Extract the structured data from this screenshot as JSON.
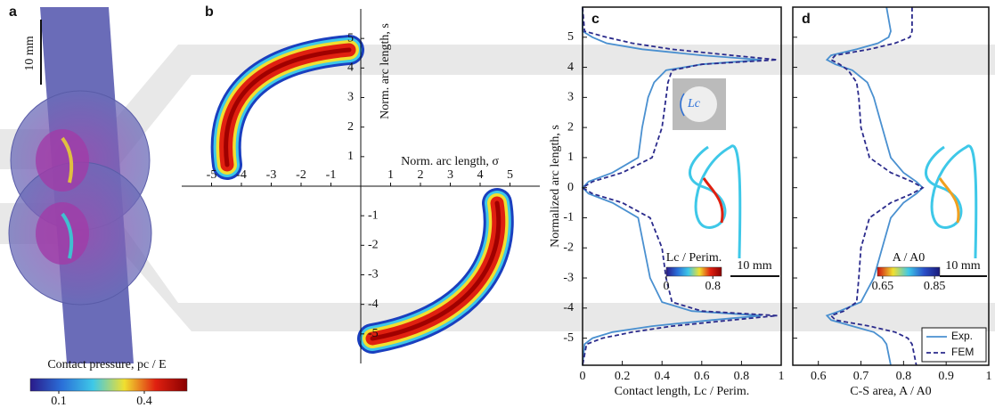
{
  "chart_data": [
    {
      "type": "image",
      "label": "a",
      "scale_bar": "10 mm",
      "colorbar": {
        "title": "Contact pressure, pc / E",
        "lim": [
          0,
          0.55
        ],
        "ticks": [
          0.1,
          0.4
        ],
        "colors": [
          "#2a1a8a",
          "#2a6fd8",
          "#3ec8e8",
          "#f0e030",
          "#e02010",
          "#8a0000"
        ]
      }
    },
    {
      "type": "contact_map",
      "label": "b",
      "xlabel": "Norm. arc length, σ",
      "ylabel": "Norm. arc length, s",
      "xlim": [
        -6,
        6
      ],
      "ylim": [
        -6,
        6
      ],
      "xticks": [
        -5,
        -4,
        -3,
        -2,
        -1,
        1,
        2,
        3,
        4,
        5
      ],
      "yticks": [
        -5,
        -4,
        -3,
        -2,
        -1,
        1,
        2,
        3,
        4,
        5
      ]
    },
    {
      "type": "line",
      "label": "c",
      "xlabel": "Contact length, Lc / Perim.",
      "ylabel": "Normalized arc length, s",
      "xlim": [
        0,
        1
      ],
      "xticks": [
        0,
        0.2,
        0.4,
        0.6,
        0.8,
        1
      ],
      "ylim": [
        -5.9,
        6
      ],
      "yticks": [
        -5,
        -4,
        -3,
        -2,
        -1,
        0,
        1,
        2,
        3,
        4,
        5
      ],
      "arc_length": [
        6,
        5.2,
        5,
        4.8,
        4.6,
        4.4,
        4.25,
        4.1,
        3.9,
        3.5,
        3,
        2,
        1,
        0.5,
        0.2,
        0,
        -0.2,
        -0.5,
        -1,
        -2,
        -3,
        -3.8,
        -4.1,
        -4.25,
        -4.4,
        -4.6,
        -4.8,
        -5,
        -5.2,
        -5.9
      ],
      "series": [
        {
          "color": "#4a90d0",
          "line_style": "solid",
          "values": [
            0,
            0,
            0.05,
            0.12,
            0.3,
            0.6,
            0.9,
            0.6,
            0.42,
            0.36,
            0.33,
            0.3,
            0.28,
            0.15,
            0.03,
            0,
            0.03,
            0.15,
            0.28,
            0.31,
            0.34,
            0.4,
            0.55,
            0.9,
            0.65,
            0.35,
            0.15,
            0.05,
            0.01,
            0
          ]
        },
        {
          "color": "#2b2b8c",
          "line_style": "dashed",
          "values": [
            0,
            0.01,
            0.12,
            0.25,
            0.45,
            0.75,
            0.98,
            0.6,
            0.45,
            0.43,
            0.42,
            0.4,
            0.35,
            0.2,
            0.05,
            0,
            0.05,
            0.2,
            0.34,
            0.4,
            0.42,
            0.45,
            0.6,
            0.98,
            0.75,
            0.45,
            0.25,
            0.1,
            0.02,
            0
          ]
        }
      ],
      "inset": {
        "photo_label": "Lc",
        "colorbar_title": "Lc / Perim.",
        "colorbar_lim": [
          0,
          0.95
        ],
        "colorbar_ticks": [
          0,
          0.8
        ],
        "colorbar_colors": [
          "#2a1a8a",
          "#2a6fd8",
          "#3ec8e8",
          "#f0e030",
          "#e02010",
          "#8a0000"
        ],
        "scale_bar": "10 mm"
      }
    },
    {
      "type": "line",
      "label": "d",
      "xlabel": "C-S area, A / A0",
      "xlim": [
        0.54,
        1
      ],
      "xticks": [
        0.6,
        0.7,
        0.8,
        0.9,
        1
      ],
      "ylim": [
        -5.9,
        6
      ],
      "yticks": [
        -5,
        -4,
        -3,
        -2,
        -1,
        0,
        1,
        2,
        3,
        4,
        5
      ],
      "arc_length": [
        6,
        5.2,
        5,
        4.8,
        4.6,
        4.4,
        4.25,
        4.1,
        3.9,
        3.5,
        3,
        2,
        1,
        0.5,
        0.2,
        0,
        -0.2,
        -0.5,
        -1,
        -2,
        -3,
        -3.8,
        -4.1,
        -4.25,
        -4.4,
        -4.6,
        -4.8,
        -5,
        -5.2,
        -5.9
      ],
      "series": [
        {
          "name": "Exp.",
          "color": "#4a90d0",
          "line_style": "solid",
          "values": [
            0.76,
            0.77,
            0.765,
            0.74,
            0.69,
            0.63,
            0.62,
            0.64,
            0.68,
            0.715,
            0.73,
            0.75,
            0.77,
            0.8,
            0.83,
            0.845,
            0.83,
            0.8,
            0.77,
            0.75,
            0.73,
            0.7,
            0.65,
            0.62,
            0.63,
            0.68,
            0.73,
            0.75,
            0.76,
            0.77
          ]
        },
        {
          "name": "FEM",
          "color": "#2b2b8c",
          "line_style": "dashed",
          "values": [
            0.82,
            0.82,
            0.815,
            0.78,
            0.72,
            0.64,
            0.63,
            0.65,
            0.67,
            0.69,
            0.695,
            0.7,
            0.72,
            0.77,
            0.82,
            0.845,
            0.82,
            0.77,
            0.72,
            0.7,
            0.695,
            0.69,
            0.66,
            0.63,
            0.64,
            0.72,
            0.78,
            0.81,
            0.82,
            0.83
          ]
        }
      ],
      "legend": "lower right",
      "inset": {
        "colorbar_title": "A / A0",
        "colorbar_lim": [
          0.63,
          0.87
        ],
        "colorbar_ticks": [
          0.65,
          0.85
        ],
        "colorbar_colors": [
          "#d01010",
          "#f0e030",
          "#3ec8e8",
          "#2a4fc8",
          "#1a1a7a"
        ],
        "scale_bar": "10 mm"
      }
    }
  ]
}
